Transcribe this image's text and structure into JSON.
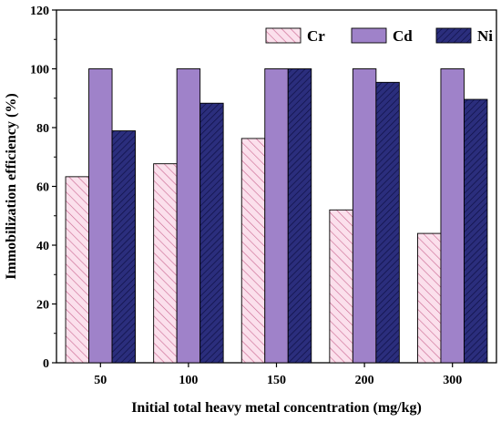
{
  "chart_data": {
    "type": "bar",
    "xlabel": "Initial total heavy metal concentration (mg/kg)",
    "ylabel": "Immobilization efficiency (%)",
    "ylim": [
      0,
      120
    ],
    "yticks": [
      0,
      20,
      40,
      60,
      80,
      100,
      120
    ],
    "grid": false,
    "legend_position": "top-right",
    "categories": [
      "50",
      "100",
      "150",
      "200",
      "300"
    ],
    "series": [
      {
        "name": "Cr",
        "values": [
          63.3,
          67.7,
          76.3,
          52.0,
          44.0
        ],
        "fill": "#fbe0ec",
        "hatch": "forward-diagonal",
        "hatch_color": "#c9658f"
      },
      {
        "name": "Cd",
        "values": [
          100,
          100,
          100,
          100,
          100
        ],
        "fill": "#9f82c9",
        "hatch": "none",
        "hatch_color": "#9f82c9"
      },
      {
        "name": "Ni",
        "values": [
          78.9,
          88.3,
          100,
          95.4,
          89.6
        ],
        "fill": "#2b2e7d",
        "hatch": "back-diagonal",
        "hatch_color": "#0f1045"
      }
    ]
  }
}
